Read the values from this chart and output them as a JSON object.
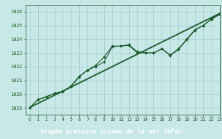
{
  "background_color": "#c8e8e8",
  "plot_bg_color": "#c8e8e8",
  "label_bg_color": "#2d6e3e",
  "grid_color": "#a0cccc",
  "line_color": "#1a5c2a",
  "title": "Graphe pression niveau de la mer (hPa)",
  "title_color": "#ffffff",
  "xlim": [
    -0.5,
    23
  ],
  "ylim": [
    1018.5,
    1026.5
  ],
  "xticks": [
    0,
    1,
    2,
    3,
    4,
    5,
    6,
    7,
    8,
    9,
    10,
    11,
    12,
    13,
    14,
    15,
    16,
    17,
    18,
    19,
    20,
    21,
    22,
    23
  ],
  "yticks": [
    1019,
    1020,
    1021,
    1022,
    1023,
    1024,
    1025,
    1026
  ],
  "series1": [
    1019.0,
    1019.6,
    1019.8,
    1020.05,
    1020.15,
    1020.6,
    1021.3,
    1021.75,
    1022.1,
    1022.7,
    1023.5,
    1023.5,
    1023.6,
    1023.1,
    1023.0,
    1023.0,
    1023.3,
    1022.85,
    1023.3,
    1024.0,
    1024.7,
    1025.0,
    1025.5,
    1025.85
  ],
  "series2": [
    1019.0,
    1019.6,
    1019.8,
    1020.05,
    1020.2,
    1020.55,
    1021.25,
    1021.75,
    1022.0,
    1022.35,
    1023.45,
    1023.5,
    1023.55,
    1023.0,
    1023.0,
    1023.0,
    1023.3,
    1022.8,
    1023.25,
    1023.95,
    1024.65,
    1025.0,
    1025.45,
    1025.8
  ],
  "series3_straight": [
    1019.0,
    1025.85
  ],
  "series3_x": [
    0,
    23
  ],
  "series4_straight": [
    1019.0,
    1025.85
  ],
  "series4_x": [
    0,
    23
  ],
  "marker_series": [
    1019.0,
    1019.6,
    1019.8,
    1020.05,
    1020.15,
    1020.6,
    1021.3,
    1021.75,
    1022.1,
    1022.7,
    1023.5,
    1023.5,
    1023.6,
    1023.1,
    1023.0,
    1023.0,
    1023.3,
    1022.85,
    1023.3,
    1024.0,
    1024.7,
    1025.0,
    1025.5,
    1025.85
  ]
}
